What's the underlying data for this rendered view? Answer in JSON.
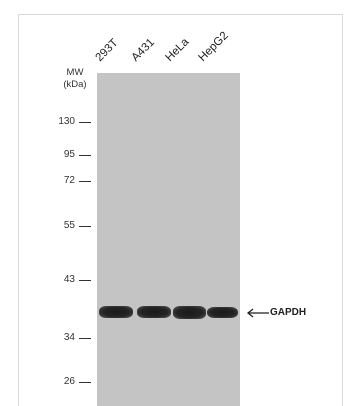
{
  "lanes": [
    "293T",
    "A431",
    "HeLa",
    "HepG2"
  ],
  "mw_title_line1": "MW",
  "mw_title_line2": "(kDa)",
  "markers": [
    "130",
    "95",
    "72",
    "55",
    "43",
    "34",
    "26"
  ],
  "target": "GAPDH",
  "arrow_icon": "left-arrow-icon",
  "colors": {
    "membrane": "#c4c4c4",
    "band": "#1f1f1f",
    "text": "#222222"
  }
}
